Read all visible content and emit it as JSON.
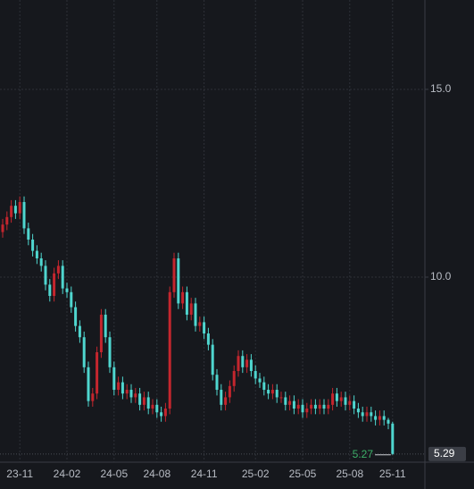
{
  "chart_data": {
    "type": "candlestick",
    "categories": [
      null,
      null,
      null,
      null,
      "23-11",
      null,
      null,
      null,
      null,
      null,
      null,
      null,
      null,
      null,
      null,
      "24-02",
      null,
      null,
      null,
      null,
      null,
      null,
      null,
      null,
      null,
      null,
      "24-05",
      null,
      null,
      null,
      null,
      null,
      null,
      null,
      null,
      null,
      "24-08",
      null,
      null,
      null,
      null,
      null,
      null,
      null,
      null,
      null,
      null,
      "24-11",
      null,
      null,
      null,
      null,
      null,
      null,
      null,
      null,
      null,
      null,
      null,
      "25-02",
      null,
      null,
      null,
      null,
      null,
      null,
      null,
      null,
      null,
      null,
      "25-05",
      null,
      null,
      null,
      null,
      null,
      null,
      null,
      null,
      null,
      null,
      "25-08",
      null,
      null,
      null,
      null,
      null,
      null,
      null,
      null,
      null,
      "25-11"
    ],
    "open": [
      11.2,
      11.4,
      11.6,
      11.9,
      11.7,
      12.0,
      11.3,
      11.0,
      10.7,
      10.5,
      10.3,
      9.8,
      9.5,
      10.1,
      10.3,
      9.7,
      9.6,
      9.2,
      8.7,
      8.4,
      7.6,
      6.7,
      6.9,
      8.0,
      9.0,
      8.4,
      7.6,
      7.0,
      7.2,
      6.9,
      7.0,
      6.8,
      6.9,
      6.6,
      6.8,
      6.5,
      6.6,
      6.4,
      6.3,
      6.5,
      9.6,
      10.5,
      9.3,
      9.6,
      9.0,
      9.3,
      8.7,
      8.8,
      8.5,
      8.2,
      7.4,
      7.0,
      6.6,
      6.8,
      7.1,
      7.5,
      7.9,
      7.6,
      7.8,
      7.5,
      7.3,
      7.2,
      7.0,
      6.9,
      7.0,
      6.8,
      6.8,
      6.6,
      6.7,
      6.5,
      6.6,
      6.4,
      6.5,
      6.6,
      6.5,
      6.6,
      6.5,
      6.6,
      6.9,
      6.7,
      6.8,
      6.6,
      6.7,
      6.5,
      6.4,
      6.3,
      6.4,
      6.3,
      6.2,
      6.3,
      6.2,
      6.1
    ],
    "high": [
      11.55,
      11.75,
      12.05,
      12.05,
      12.15,
      12.15,
      11.45,
      11.15,
      10.85,
      10.65,
      10.45,
      9.95,
      10.25,
      10.45,
      10.45,
      9.85,
      9.75,
      9.35,
      8.85,
      8.55,
      7.75,
      7.05,
      8.15,
      9.15,
      9.15,
      8.55,
      7.75,
      7.35,
      7.35,
      7.15,
      7.15,
      7.05,
      7.05,
      6.95,
      6.95,
      6.75,
      6.75,
      6.55,
      6.65,
      9.75,
      10.65,
      10.65,
      9.75,
      9.75,
      9.45,
      9.45,
      8.95,
      8.95,
      8.65,
      8.35,
      7.55,
      7.15,
      6.95,
      7.25,
      7.65,
      8.05,
      8.05,
      7.95,
      7.95,
      7.65,
      7.45,
      7.35,
      7.15,
      7.15,
      7.15,
      6.95,
      6.95,
      6.85,
      6.85,
      6.75,
      6.75,
      6.65,
      6.75,
      6.75,
      6.75,
      6.75,
      6.75,
      7.05,
      7.05,
      6.95,
      6.95,
      6.85,
      6.85,
      6.65,
      6.55,
      6.55,
      6.55,
      6.45,
      6.45,
      6.45,
      6.25,
      6.15
    ],
    "low": [
      11.05,
      11.25,
      11.45,
      11.55,
      11.55,
      11.15,
      10.85,
      10.55,
      10.35,
      10.15,
      9.65,
      9.35,
      9.35,
      9.95,
      9.55,
      9.45,
      9.05,
      8.55,
      8.25,
      7.45,
      6.55,
      6.55,
      6.75,
      7.85,
      8.25,
      7.45,
      6.85,
      6.85,
      6.75,
      6.75,
      6.65,
      6.65,
      6.45,
      6.45,
      6.35,
      6.35,
      6.25,
      6.15,
      6.15,
      6.35,
      9.45,
      9.15,
      9.15,
      8.85,
      8.85,
      8.55,
      8.55,
      8.35,
      8.05,
      7.25,
      6.85,
      6.45,
      6.45,
      6.65,
      6.95,
      7.35,
      7.45,
      7.45,
      7.35,
      7.15,
      7.05,
      6.85,
      6.75,
      6.75,
      6.65,
      6.65,
      6.45,
      6.45,
      6.35,
      6.35,
      6.25,
      6.25,
      6.35,
      6.35,
      6.35,
      6.35,
      6.35,
      6.45,
      6.55,
      6.55,
      6.45,
      6.45,
      6.35,
      6.25,
      6.15,
      6.15,
      6.15,
      6.05,
      6.05,
      6.05,
      5.95,
      5.27
    ],
    "close": [
      11.4,
      11.6,
      11.9,
      11.7,
      12.0,
      11.3,
      11.0,
      10.7,
      10.5,
      10.3,
      9.8,
      9.5,
      10.1,
      10.3,
      9.7,
      9.6,
      9.2,
      8.7,
      8.4,
      7.6,
      6.7,
      6.9,
      8.0,
      9.0,
      8.4,
      7.6,
      7.0,
      7.2,
      6.9,
      7.0,
      6.8,
      6.9,
      6.6,
      6.8,
      6.5,
      6.6,
      6.4,
      6.3,
      6.5,
      9.6,
      10.5,
      9.3,
      9.6,
      9.0,
      9.3,
      8.7,
      8.8,
      8.5,
      8.2,
      7.4,
      7.0,
      6.6,
      6.8,
      7.1,
      7.5,
      7.9,
      7.6,
      7.8,
      7.5,
      7.3,
      7.2,
      7.0,
      6.9,
      7.0,
      6.8,
      6.8,
      6.6,
      6.7,
      6.5,
      6.6,
      6.4,
      6.5,
      6.6,
      6.5,
      6.6,
      6.5,
      6.6,
      6.9,
      6.7,
      6.8,
      6.6,
      6.7,
      6.5,
      6.4,
      6.3,
      6.4,
      6.3,
      6.2,
      6.3,
      6.2,
      6.1,
      5.29
    ],
    "up_color": "#c4262e",
    "down_color": "#4fd6cf",
    "ylim": [
      5.12,
      17.38
    ],
    "yticks": [
      {
        "value": 10,
        "label": "10.0"
      },
      {
        "value": 15,
        "label": "15.0"
      }
    ],
    "grid": true,
    "low_marker": 5.27,
    "last_price": 5.29
  }
}
